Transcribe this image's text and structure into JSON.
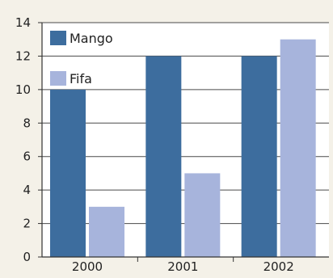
{
  "chart_data": {
    "type": "bar",
    "categories": [
      "2000",
      "2001",
      "2002"
    ],
    "series": [
      {
        "name": "Mango",
        "values": [
          10,
          12,
          12
        ],
        "color": "#3d6d9e"
      },
      {
        "name": "Fifa",
        "values": [
          3,
          5,
          13
        ],
        "color": "#a7b4dc"
      }
    ],
    "ylim": [
      0,
      14
    ],
    "yticks": [
      0,
      2,
      4,
      6,
      8,
      10,
      12,
      14
    ],
    "grid": true,
    "legend_position": "top-left",
    "plot_background": "#ffffff",
    "page_background": "#f4f1e8",
    "grid_color": "#4a4a4a"
  }
}
